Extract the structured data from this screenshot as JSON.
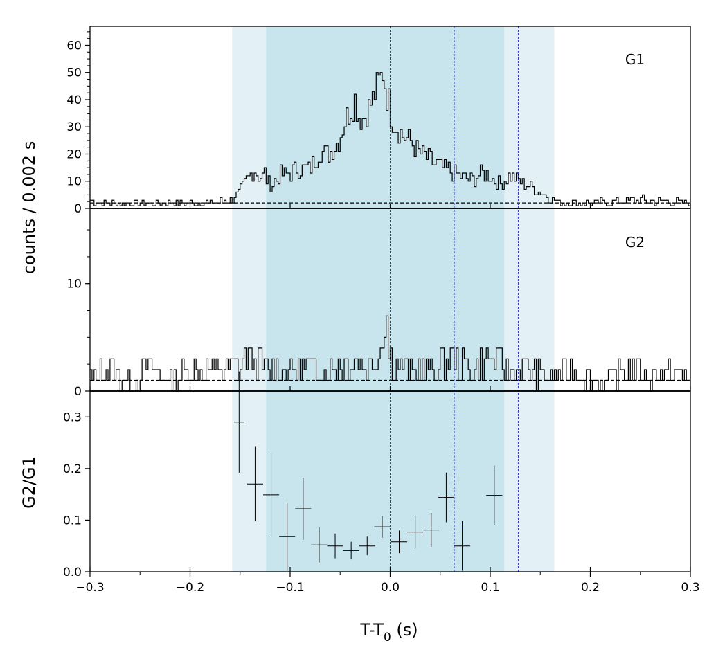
{
  "chart_data": [
    {
      "type": "line",
      "panel": "G1",
      "label": "G1",
      "ylabel": "counts /  0.002 s",
      "ylim": [
        0,
        67
      ],
      "y_ticks": [
        0,
        10,
        20,
        30,
        40,
        50,
        60
      ],
      "xlim": [
        -0.3,
        0.3
      ],
      "background_level": 2,
      "bin_width": 0.002,
      "x": [
        -0.3,
        -0.28,
        -0.26,
        -0.24,
        -0.22,
        -0.2,
        -0.18,
        -0.16,
        -0.15,
        -0.14,
        -0.135,
        -0.13,
        -0.125,
        -0.12,
        -0.11,
        -0.1,
        -0.09,
        -0.08,
        -0.07,
        -0.06,
        -0.05,
        -0.045,
        -0.04,
        -0.035,
        -0.03,
        -0.025,
        -0.02,
        -0.015,
        -0.01,
        -0.006,
        -0.004,
        -0.002,
        0.0,
        0.005,
        0.01,
        0.02,
        0.03,
        0.04,
        0.05,
        0.06,
        0.07,
        0.08,
        0.09,
        0.1,
        0.11,
        0.12,
        0.13,
        0.14,
        0.15,
        0.16,
        0.17,
        0.2,
        0.25,
        0.3
      ],
      "y": [
        3,
        2,
        2,
        2,
        2,
        2,
        2,
        3,
        6,
        12,
        14,
        11,
        13,
        8,
        12,
        13,
        15,
        14,
        21,
        20,
        26,
        32,
        36,
        40,
        33,
        34,
        38,
        42,
        47,
        51,
        40,
        43,
        35,
        32,
        28,
        25,
        20,
        18,
        15,
        14,
        12,
        10,
        13,
        12,
        9,
        12,
        10,
        8,
        6,
        4,
        2,
        2,
        3,
        2
      ]
    },
    {
      "type": "line",
      "panel": "G2",
      "label": "G2",
      "ylim": [
        0,
        17
      ],
      "y_ticks": [
        0,
        10
      ],
      "xlim": [
        -0.3,
        0.3
      ],
      "background_level": 1,
      "bin_width": 0.002,
      "x": [
        -0.3,
        -0.28,
        -0.26,
        -0.24,
        -0.22,
        -0.2,
        -0.18,
        -0.16,
        -0.14,
        -0.12,
        -0.1,
        -0.08,
        -0.06,
        -0.04,
        -0.02,
        -0.01,
        -0.006,
        -0.004,
        -0.002,
        0.0,
        0.01,
        0.02,
        0.04,
        0.06,
        0.08,
        0.1,
        0.12,
        0.14,
        0.16,
        0.18,
        0.2,
        0.22,
        0.24,
        0.26,
        0.28,
        0.3
      ],
      "y": [
        1,
        2,
        1,
        2,
        1,
        2,
        2,
        2,
        3,
        2,
        2,
        2,
        2,
        3,
        2,
        4,
        6,
        9,
        5,
        3,
        2,
        2,
        2,
        3,
        2,
        3,
        2,
        2,
        1,
        2,
        1,
        1,
        2,
        1,
        2,
        1
      ]
    },
    {
      "type": "scatter",
      "panel": "ratio",
      "ylabel": "G2/G1",
      "xlabel": "T-T0 (s)",
      "xlim": [
        -0.3,
        0.3
      ],
      "ylim": [
        0,
        0.35
      ],
      "x_ticks": [
        -0.3,
        -0.2,
        -0.1,
        0.0,
        0.1,
        0.2,
        0.3
      ],
      "x_tick_labels": [
        "−0.3",
        "−0.2",
        "−0.1",
        "0.0",
        "0.1",
        "0.2",
        "0.3"
      ],
      "y_ticks": [
        0.0,
        0.1,
        0.2,
        0.3
      ],
      "y_tick_labels": [
        "0.0",
        "0.1",
        "0.2",
        "0.3"
      ],
      "points": [
        {
          "x": -0.151,
          "xerr": 0.005,
          "y": 0.29,
          "yerr": 0.098
        },
        {
          "x": -0.135,
          "xerr": 0.008,
          "y": 0.17,
          "yerr": 0.072
        },
        {
          "x": -0.119,
          "xerr": 0.008,
          "y": 0.149,
          "yerr": 0.081
        },
        {
          "x": -0.103,
          "xerr": 0.008,
          "y": 0.068,
          "yerr": 0.066
        },
        {
          "x": -0.087,
          "xerr": 0.008,
          "y": 0.122,
          "yerr": 0.06
        },
        {
          "x": -0.071,
          "xerr": 0.008,
          "y": 0.052,
          "yerr": 0.034
        },
        {
          "x": -0.055,
          "xerr": 0.008,
          "y": 0.05,
          "yerr": 0.024
        },
        {
          "x": -0.039,
          "xerr": 0.008,
          "y": 0.041,
          "yerr": 0.017
        },
        {
          "x": -0.023,
          "xerr": 0.008,
          "y": 0.05,
          "yerr": 0.018
        },
        {
          "x": -0.008,
          "xerr": 0.008,
          "y": 0.087,
          "yerr": 0.021
        },
        {
          "x": 0.009,
          "xerr": 0.008,
          "y": 0.058,
          "yerr": 0.022
        },
        {
          "x": 0.025,
          "xerr": 0.008,
          "y": 0.077,
          "yerr": 0.032
        },
        {
          "x": 0.041,
          "xerr": 0.008,
          "y": 0.081,
          "yerr": 0.033
        },
        {
          "x": 0.056,
          "xerr": 0.008,
          "y": 0.144,
          "yerr": 0.048
        },
        {
          "x": 0.072,
          "xerr": 0.008,
          "y": 0.05,
          "yerr": 0.048
        },
        {
          "x": 0.104,
          "xerr": 0.008,
          "y": 0.148,
          "yerr": 0.058
        }
      ]
    }
  ],
  "shaded_regions": {
    "outer": [
      -0.158,
      0.164
    ],
    "inner": [
      -0.124,
      0.114
    ],
    "outer_color": "#e3f1f6",
    "inner_color": "#c8e4ec"
  },
  "reference_lines": {
    "x": [
      0.0,
      0.064,
      0.128
    ],
    "color": "#3333cc"
  },
  "axes": {
    "shared_ylabel": "counts /  0.002 s",
    "g2g1_label": "G2/G1",
    "xlabel_main": "T-T",
    "xlabel_sub": "0",
    "xlabel_unit": " (s)"
  }
}
